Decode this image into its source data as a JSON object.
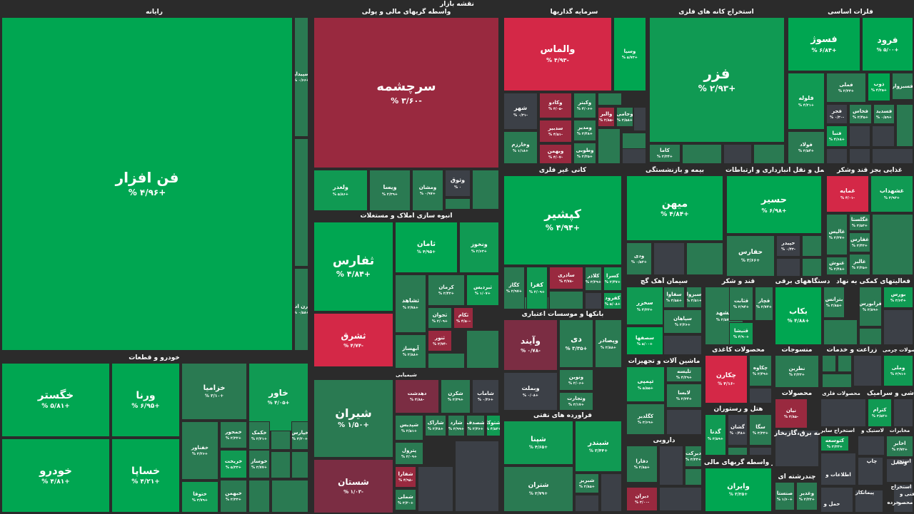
{
  "title": "نقشه بازار",
  "colors": {
    "g3": "#00a651",
    "g2": "#109a53",
    "g1": "#2a7a52",
    "n": "#3c4047",
    "r1": "#7b2d43",
    "r2": "#99293f",
    "r3": "#d42847",
    "bg": "#2b2b2b"
  },
  "chart_data": {
    "type": "treemap",
    "title": "نقشه بازار",
    "sectors": [
      {
        "name": "رایانه",
        "stocks": [
          {
            "name": "فن افزار",
            "change": "+۴/۹۶ %",
            "c": "g3"
          },
          {
            "name": "سپیدار",
            "change": "+۰/۶۶ %",
            "c": "g1"
          },
          {
            "name": "",
            "change": "",
            "c": "g1"
          },
          {
            "name": "رن اد",
            "change": "+۰/۵۸ %",
            "c": "g1"
          }
        ]
      },
      {
        "name": "واسطه گریهای مالی و پولی",
        "stocks": [
          {
            "name": "سرچشمه",
            "change": "-۳/۶۰ %",
            "c": "r2"
          },
          {
            "name": "ولغدر",
            "change": "+۵/۸۶ %",
            "c": "g2"
          },
          {
            "name": "ویسا",
            "change": "+۲/۳۹ %",
            "c": "g1"
          },
          {
            "name": "ومشان",
            "change": "+۰/۹۷ %",
            "c": "g1"
          },
          {
            "name": "وثوق",
            "change": "۰ %",
            "c": "n"
          }
        ]
      },
      {
        "name": "سرمایه گذاریها",
        "stocks": [
          {
            "name": "والماس",
            "change": "-۴/۹۳ %",
            "c": "r3"
          },
          {
            "name": "وسپا",
            "change": "+۵/۷۳ %",
            "c": "g3"
          },
          {
            "name": "شهر",
            "change": "-۰/۳۱ %",
            "c": "n"
          },
          {
            "name": "وکادو",
            "change": "-۳/۰۵ %",
            "c": "r2"
          },
          {
            "name": "وکبتر",
            "change": "+۴/۰۶ %",
            "c": "g1"
          },
          {
            "name": "وخارزم",
            "change": "+۱/۱۸ %",
            "c": "g1"
          },
          {
            "name": "سدبیر",
            "change": "-۴/۵۱ %",
            "c": "r2"
          },
          {
            "name": "ومدیر",
            "change": "+۳/۴۸ %",
            "c": "g1"
          },
          {
            "name": "والبر",
            "change": "-۲/۸۵ %",
            "c": "r2"
          },
          {
            "name": "وجامی",
            "change": "+۲/۵۸ %",
            "c": "g1"
          },
          {
            "name": "وبهمن",
            "change": "-۴/۰۷ %",
            "c": "r2"
          },
          {
            "name": "وطوبی",
            "change": "+۲/۲۵ %",
            "c": "g1"
          }
        ]
      },
      {
        "name": "استخراج کانه های فلزی",
        "stocks": [
          {
            "name": "فزر",
            "change": "+۲/۹۳ %",
            "c": "g2"
          },
          {
            "name": "کاما",
            "change": "+۲/۳۴ %",
            "c": "g1"
          }
        ]
      },
      {
        "name": "فلزات اساسی",
        "stocks": [
          {
            "name": "فسوژ",
            "change": "+۶/۸۴ %",
            "c": "g3"
          },
          {
            "name": "فرود",
            "change": "+۵/۰۰ %",
            "c": "g3"
          },
          {
            "name": "فلوله",
            "change": "+۴/۲۱ %",
            "c": "g2"
          },
          {
            "name": "فملی",
            "change": "+۲/۳۳ %",
            "c": "g1"
          },
          {
            "name": "ذوب",
            "change": "+۴/۲۵ %",
            "c": "g3"
          },
          {
            "name": "فسبزوار",
            "change": "",
            "c": "g1"
          },
          {
            "name": "فجر",
            "change": "-۰/۳۰ %",
            "c": "n"
          },
          {
            "name": "فخاس",
            "change": "+۲/۴۵ %",
            "c": "g1"
          },
          {
            "name": "فسدید",
            "change": "+۰/۵۹ %",
            "c": "g1"
          },
          {
            "name": "فنبا",
            "change": "+۴/۶۸ %",
            "c": "g2"
          },
          {
            "name": "فولاد",
            "change": "+۳/۵۴ %",
            "c": "g1"
          }
        ]
      },
      {
        "name": "انبوه سازی املاک و مستغلات",
        "stocks": [
          {
            "name": "ثفارس",
            "change": "+۴/۸۴ %",
            "c": "g3"
          },
          {
            "name": "ثامان",
            "change": "+۴/۹۵ %",
            "c": "g3"
          },
          {
            "name": "ونخوز",
            "change": "+۲/۶۳ %",
            "c": "g2"
          },
          {
            "name": "ثشرق",
            "change": "-۴/۷۴ %",
            "c": "r3"
          },
          {
            "name": "ثشاهد",
            "change": "+۲/۷۸ %",
            "c": "g1"
          },
          {
            "name": "کرمان",
            "change": "+۲/۴۲ %",
            "c": "g1"
          },
          {
            "name": "ثبردیس",
            "change": "+۱/۰۷ %",
            "c": "g2"
          },
          {
            "name": "ثجوان",
            "change": "+۲/۰۹ %",
            "c": "g1"
          },
          {
            "name": "ثکام",
            "change": "-۴/۵۰ %",
            "c": "r2"
          },
          {
            "name": "ثنور",
            "change": "-۲/۷۴ %",
            "c": "r2"
          },
          {
            "name": "آبهساز",
            "change": "+۲/۸۸ %",
            "c": "g1"
          }
        ]
      },
      {
        "name": "کانی غیر فلزی",
        "stocks": [
          {
            "name": "کپشیر",
            "change": "+۴/۹۴ %",
            "c": "g3"
          },
          {
            "name": "ساذری",
            "change": "-۴/۷۸ %",
            "c": "r2"
          },
          {
            "name": "کگاز",
            "change": "+۲/۹۷ %",
            "c": "g1"
          },
          {
            "name": "کسرا",
            "change": "+۲/۴۷ %",
            "c": "g2"
          },
          {
            "name": "کفرا",
            "change": "+۲/۰۹ %",
            "c": "g2"
          },
          {
            "name": "کلاذر",
            "change": "+۳/۲۹ %",
            "c": "g1"
          },
          {
            "name": "کفرود",
            "change": "+۵/۰۸ %",
            "c": "g2"
          }
        ]
      },
      {
        "name": "بیمه و بازنشستگی",
        "stocks": [
          {
            "name": "میهن",
            "change": "+۴/۸۴ %",
            "c": "g3"
          },
          {
            "name": "ودی",
            "change": "+۰/۵۲ %",
            "c": "g1"
          }
        ]
      },
      {
        "name": "حمل و نقل انبارداری و ارتباطات",
        "stocks": [
          {
            "name": "حسیر",
            "change": "+۶/۹۸ %",
            "c": "g3"
          },
          {
            "name": "حفارس",
            "change": "+۳/۶۶ %",
            "c": "g1"
          },
          {
            "name": "حپیدر",
            "change": "-۰/۴۳ %",
            "c": "n"
          }
        ]
      },
      {
        "name": "غذایی بجز قند وشکر",
        "stocks": [
          {
            "name": "غمایه",
            "change": "-۴/۰۱ %",
            "c": "r3"
          },
          {
            "name": "غشهداب",
            "change": "+۳/۹۳ %",
            "c": "g2"
          },
          {
            "name": "غالپس",
            "change": "+۲/۳۷ %",
            "c": "g1"
          },
          {
            "name": "غگلستا",
            "change": "+۳/۵۳ %",
            "c": "g1"
          },
          {
            "name": "غفارس",
            "change": "+۳/۴۳ %",
            "c": "g1"
          },
          {
            "name": "غنوش",
            "change": "+۲/۴۸ %",
            "c": "g1"
          },
          {
            "name": "غالبر",
            "change": "+۲/۲۵ %",
            "c": "g1"
          }
        ]
      },
      {
        "name": "بانکها و موسسات اعتباری",
        "stocks": [
          {
            "name": "وآیند",
            "change": "-۰/۷۸ %",
            "c": "r1"
          },
          {
            "name": "دی",
            "change": "+۳/۳۵ %",
            "c": "g1"
          },
          {
            "name": "وپصادر",
            "change": "+۲/۸۸ %",
            "c": "g1"
          },
          {
            "name": "وبملت",
            "change": "+۰/۰۸ %",
            "c": "n"
          },
          {
            "name": "ونوین",
            "change": "+۲/۰۶ %",
            "c": "g1"
          },
          {
            "name": "وتجارت",
            "change": "+۳/۱۷ %",
            "c": "g1"
          }
        ]
      },
      {
        "name": "شیمیایی",
        "stocks": [
          {
            "name": "شیران",
            "change": "+۱/۵۰ %",
            "c": "g1"
          },
          {
            "name": "دهدشت",
            "change": "-۴/۸۸ %",
            "c": "r1"
          },
          {
            "name": "شکرن",
            "change": "+۲/۳۹ %",
            "c": "g1"
          },
          {
            "name": "شاماب",
            "change": "+۰/۲۶ %",
            "c": "n"
          },
          {
            "name": "شستان",
            "change": "-۱/۰۳ %",
            "c": "r1"
          },
          {
            "name": "شپدیس",
            "change": "+۲/۵۱ %",
            "c": "g1"
          },
          {
            "name": "شاراک",
            "change": "+۲/۲۸ %",
            "c": "g1"
          },
          {
            "name": "شارد",
            "change": "+۳/۹۹ %",
            "c": "g1"
          },
          {
            "name": "شصدف",
            "change": "+۲/۳۶ %",
            "c": "g1"
          },
          {
            "name": "شکف",
            "change": "+۳/۸۵ %",
            "c": "g1"
          },
          {
            "name": "شتوکا",
            "change": "+۴/۵۳ %",
            "c": "g2"
          },
          {
            "name": "پترول",
            "change": "+۲/۰۹ %",
            "c": "g1"
          },
          {
            "name": "شفارا",
            "change": "-۴/۹۸ %",
            "c": "r2"
          },
          {
            "name": "شملی",
            "change": "+۳/۳۰ %",
            "c": "g1"
          }
        ]
      },
      {
        "name": "قند و شکر",
        "stocks": [
          {
            "name": "قشهد",
            "change": "+۲/۵۷ %",
            "c": "g1"
          },
          {
            "name": "قثابت",
            "change": "+۲/۹۴ %",
            "c": "g1"
          },
          {
            "name": "قچار",
            "change": "+۲/۷۴ %",
            "c": "g1"
          },
          {
            "name": "قنیشا",
            "change": "+۴/۹۰ %",
            "c": "g2"
          }
        ]
      },
      {
        "name": "سیمان آهک گچ",
        "stocks": [
          {
            "name": "سخزر",
            "change": "+۴/۳۳ %",
            "c": "g2"
          },
          {
            "name": "سشرق",
            "change": "+۴/۳۹ %",
            "c": "g2"
          },
          {
            "name": "سفاوا",
            "change": "+۳/۵۸ %",
            "c": "g1"
          },
          {
            "name": "سپاهان",
            "change": "+۲/۲۶ %",
            "c": "g1"
          },
          {
            "name": "سصفها",
            "change": "+۵/۰۰ %",
            "c": "g3"
          },
          {
            "name": "سبزوا",
            "change": "+۳/۵۱ %",
            "c": "g1"
          }
        ]
      },
      {
        "name": "دستگاههای برقی",
        "stocks": [
          {
            "name": "بکاب",
            "change": "+۴/۸۸ %",
            "c": "g3"
          },
          {
            "name": "بترانس",
            "change": "+۳/۸۵ %",
            "c": "g1"
          },
          {
            "name": "فرابورس",
            "change": "+۲/۸۹ %",
            "c": "g1"
          },
          {
            "name": "بورس",
            "change": "+۳/۶۴ %",
            "c": "g2"
          }
        ]
      },
      {
        "name": "فعالیتهای کمکی به نهاد",
        "stocks": []
      },
      {
        "name": "خودرو و قطعات",
        "stocks": [
          {
            "name": "خگستر",
            "change": "+۵/۸۱ %",
            "c": "g3"
          },
          {
            "name": "ورنا",
            "change": "+۶/۹۵ %",
            "c": "g3"
          },
          {
            "name": "خزامیا",
            "change": "+۳/۱۰ %",
            "c": "g1"
          },
          {
            "name": "خاور",
            "change": "+۴/۰۵ %",
            "c": "g2"
          },
          {
            "name": "خودرو",
            "change": "+۴/۸۱ %",
            "c": "g3"
          },
          {
            "name": "خساپا",
            "change": "+۴/۲۱ %",
            "c": "g3"
          },
          {
            "name": "خفناور",
            "change": "+۳/۲۶ %",
            "c": "g1"
          },
          {
            "name": "خمحور",
            "change": "+۲/۳۲ %",
            "c": "g1"
          },
          {
            "name": "خکمک",
            "change": "+۲/۲۱ %",
            "c": "g1"
          },
          {
            "name": "خپارس",
            "change": "+۳/۳۰ %",
            "c": "g1"
          },
          {
            "name": "خریخت",
            "change": "+۵/۳۳ %",
            "c": "g2"
          },
          {
            "name": "خوساز",
            "change": "+۳/۷۷ %",
            "c": "g1"
          },
          {
            "name": "ختوقا",
            "change": "+۳/۷۹ %",
            "c": "g2"
          },
          {
            "name": "خبهمن",
            "change": "+۲/۳۳ %",
            "c": "g1"
          }
        ]
      },
      {
        "name": "فراورده های نفتی",
        "stocks": [
          {
            "name": "شپنا",
            "change": "+۴/۶۵ %",
            "c": "g2"
          },
          {
            "name": "شبندر",
            "change": "+۳/۴۴ %",
            "c": "g2"
          },
          {
            "name": "شتران",
            "change": "+۲/۷۹ %",
            "c": "g1"
          },
          {
            "name": "شبریز",
            "change": "+۲/۸۵ %",
            "c": "g1"
          }
        ]
      },
      {
        "name": "ماشین آلات و تجهیزات",
        "stocks": [
          {
            "name": "تپمپی",
            "change": "+۵/۵۵ %",
            "c": "g2"
          },
          {
            "name": "تلیسه",
            "change": "+۴/۲۹ %",
            "c": "g1"
          },
          {
            "name": "لابسا",
            "change": "+۲/۳۴ %",
            "c": "g1"
          },
          {
            "name": "کگلدیر",
            "change": "+۳/۶۹ %",
            "c": "g1"
          }
        ]
      },
      {
        "name": "محصولات کاغذی",
        "stocks": [
          {
            "name": "چکارن",
            "change": "-۴/۱۶ %",
            "c": "r3"
          },
          {
            "name": "چکاوه",
            "change": "+۲/۴۹ %",
            "c": "g1"
          }
        ]
      },
      {
        "name": "منسوجات",
        "stocks": [
          {
            "name": "نطرین",
            "change": "+۲/۳۳ %",
            "c": "g1"
          }
        ]
      },
      {
        "name": "زراعت و خدمات",
        "stocks": []
      },
      {
        "name": "محصولات چرمی",
        "stocks": [
          {
            "name": "وملی",
            "change": "+۳/۹۱ %",
            "c": "g2"
          }
        ]
      },
      {
        "name": "هتل و رستوران",
        "stocks": [
          {
            "name": "گدنا",
            "change": "+۳/۵۹ %",
            "c": "g2"
          },
          {
            "name": "گشان",
            "change": "+۰/۴۸ %",
            "c": "n"
          },
          {
            "name": "سگا",
            "change": "+۳/۳۳ %",
            "c": "g1"
          }
        ]
      },
      {
        "name": "محصولات",
        "stocks": [
          {
            "name": "نیان",
            "change": "-۳/۸۵ %",
            "c": "r2"
          }
        ]
      },
      {
        "name": "محصولات فلزی",
        "stocks": []
      },
      {
        "name": "کاشی و سرامیک",
        "stocks": [
          {
            "name": "کترام",
            "change": "+۳/۵۲ %",
            "c": "g2"
          }
        ]
      },
      {
        "name": "دارویی",
        "stocks": [
          {
            "name": "دفارا",
            "change": "+۲/۸۵ %",
            "c": "g1"
          },
          {
            "name": "دبرکت",
            "change": "+۳/۲۳ %",
            "c": "g1"
          },
          {
            "name": "دیران",
            "change": "-۳/۰۰ %",
            "c": "r2"
          }
        ]
      },
      {
        "name": "سایر واسطه گریهای مالی",
        "stocks": [
          {
            "name": "وایران",
            "change": "+۳/۲۵ %",
            "c": "g3"
          }
        ]
      },
      {
        "name": "عرضه برق،گازبخار",
        "stocks": []
      },
      {
        "name": "استخراج سایر",
        "stocks": [
          {
            "name": "کتوسعه",
            "change": "+۳/۳۳ %",
            "c": "g2"
          }
        ]
      },
      {
        "name": "لاستیک و",
        "stocks": []
      },
      {
        "name": "مخابرات",
        "stocks": [
          {
            "name": "اخابر",
            "change": "+۳/۷۲ %",
            "c": "g1"
          }
        ]
      },
      {
        "name": "چندرشته ای",
        "stocks": [
          {
            "name": "وغدیر",
            "change": "+۲/۲۲ %",
            "c": "g1"
          },
          {
            "name": "صنستا",
            "change": "+۱/۶۰ %",
            "c": "g1"
          }
        ]
      },
      {
        "name": "اطلاعات و",
        "stocks": []
      },
      {
        "name": "حمل و",
        "stocks": []
      },
      {
        "name": "چاپ",
        "stocks": []
      },
      {
        "name": "استخر",
        "stocks": []
      },
      {
        "name": "وسایل",
        "stocks": []
      },
      {
        "name": "پیمانکار",
        "stocks": []
      },
      {
        "name": "فنی و",
        "stocks": []
      },
      {
        "name": "استخراج",
        "stocks": []
      },
      {
        "name": "خرده",
        "stocks": []
      },
      {
        "name": "محصو",
        "stocks": []
      }
    ]
  }
}
